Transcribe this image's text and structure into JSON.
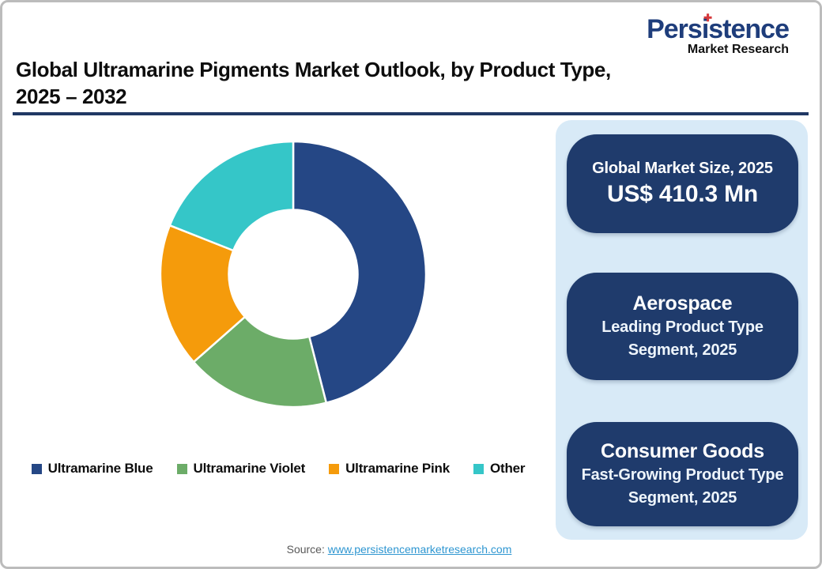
{
  "logo": {
    "name": "Persistence",
    "tagline": "Market Research",
    "dot_icon": "✚",
    "dot_color": "#d6393c",
    "name_color": "#1e3d7b"
  },
  "header": {
    "title_line1": "Global Ultramarine Pigments Market Outlook, by Product Type,",
    "title_line2": "2025 – 2032",
    "rule_color": "#203864"
  },
  "chart_data": {
    "type": "pie",
    "subtype": "donut",
    "start_angle_deg": 0,
    "direction": "clockwise",
    "categories": [
      "Ultramarine Blue",
      "Ultramarine Violet",
      "Ultramarine Pink",
      "Other"
    ],
    "values": [
      46,
      17.5,
      17.5,
      19
    ],
    "values_note": "percent share estimated from arc angles; no numeric labels shown in image",
    "colors": [
      "#254785",
      "#6cac68",
      "#f59b0b",
      "#35c6c8"
    ],
    "inner_radius_ratio": 0.485,
    "legend_position": "bottom",
    "segment_gap_color": "#ffffff"
  },
  "stats_panel": {
    "background": "#d8eaf7",
    "box_color": "#1f3b6c",
    "boxes": [
      {
        "title": "Global Market Size, 2025",
        "big_value": "US$ 410.3 Mn"
      },
      {
        "title": "Aerospace",
        "subtitle": "Leading Product Type Segment, 2025"
      },
      {
        "title": "Consumer Goods",
        "subtitle": "Fast-Growing Product Type Segment, 2025"
      }
    ]
  },
  "footer": {
    "source_label": "Source:",
    "source_link": "www.persistencemarketresearch.com"
  }
}
